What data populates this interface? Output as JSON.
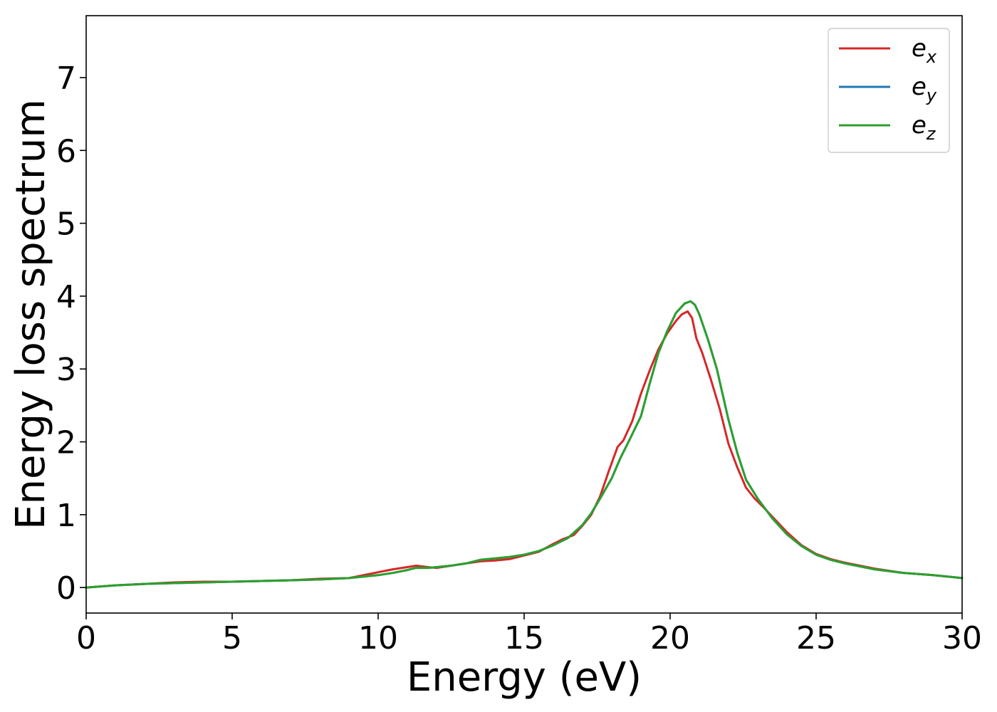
{
  "chart_data": {
    "type": "line",
    "xlabel": "Energy (eV)",
    "ylabel": "Energy loss spectrum",
    "xlim": [
      0,
      30
    ],
    "ylim": [
      -0.35,
      7.85
    ],
    "xticks": [
      0,
      5,
      10,
      15,
      20,
      25,
      30
    ],
    "yticks": [
      0,
      1,
      2,
      3,
      4,
      5,
      6,
      7
    ],
    "grid": false,
    "legend_position": "top-right",
    "series": [
      {
        "name": "e",
        "subscript": "x",
        "color": "#d62728",
        "x": [
          0,
          1,
          2,
          3,
          4,
          5,
          6,
          7,
          8,
          9,
          10,
          10.5,
          11,
          11.3,
          11.7,
          12,
          12.5,
          13,
          13.5,
          14,
          14.5,
          15,
          15.5,
          16,
          16.3,
          16.7,
          17,
          17.3,
          17.6,
          17.9,
          18.2,
          18.4,
          18.7,
          19,
          19.3,
          19.6,
          19.9,
          20.2,
          20.4,
          20.6,
          20.75,
          20.9,
          21.1,
          21.4,
          21.7,
          22,
          22.3,
          22.6,
          22.9,
          23.2,
          23.6,
          24,
          24.5,
          25,
          25.5,
          26,
          27,
          28,
          29,
          30
        ],
        "y": [
          0.0,
          0.03,
          0.05,
          0.07,
          0.08,
          0.08,
          0.09,
          0.1,
          0.12,
          0.13,
          0.21,
          0.25,
          0.28,
          0.3,
          0.28,
          0.27,
          0.3,
          0.33,
          0.36,
          0.37,
          0.39,
          0.44,
          0.49,
          0.6,
          0.66,
          0.72,
          0.85,
          1.0,
          1.25,
          1.6,
          1.93,
          2.02,
          2.28,
          2.66,
          2.98,
          3.27,
          3.49,
          3.66,
          3.75,
          3.79,
          3.7,
          3.42,
          3.22,
          2.85,
          2.45,
          1.97,
          1.65,
          1.37,
          1.22,
          1.1,
          0.93,
          0.76,
          0.58,
          0.46,
          0.39,
          0.34,
          0.26,
          0.2,
          0.17,
          0.13
        ]
      },
      {
        "name": "e",
        "subscript": "y",
        "color": "#1f77b4",
        "x": [
          0,
          1,
          2,
          3,
          4,
          5,
          6,
          7,
          8,
          9,
          10,
          10.5,
          11,
          11.3,
          11.7,
          12,
          12.5,
          13,
          13.5,
          14,
          14.5,
          15,
          15.5,
          16,
          16.5,
          17,
          17.3,
          17.6,
          18,
          18.3,
          18.6,
          19,
          19.3,
          19.6,
          19.9,
          20.2,
          20.5,
          20.7,
          20.85,
          21,
          21.3,
          21.6,
          22,
          22.3,
          22.6,
          23,
          23.5,
          24,
          24.5,
          25,
          25.5,
          26,
          27,
          28,
          29,
          30
        ],
        "y": [
          0.0,
          0.03,
          0.05,
          0.06,
          0.07,
          0.08,
          0.09,
          0.1,
          0.11,
          0.13,
          0.17,
          0.2,
          0.24,
          0.27,
          0.27,
          0.28,
          0.3,
          0.33,
          0.38,
          0.4,
          0.42,
          0.45,
          0.5,
          0.58,
          0.68,
          0.86,
          1.02,
          1.22,
          1.5,
          1.78,
          2.02,
          2.35,
          2.8,
          3.22,
          3.52,
          3.77,
          3.9,
          3.93,
          3.88,
          3.75,
          3.4,
          3.0,
          2.3,
          1.85,
          1.48,
          1.22,
          0.95,
          0.73,
          0.57,
          0.45,
          0.38,
          0.33,
          0.25,
          0.2,
          0.17,
          0.13
        ]
      },
      {
        "name": "e",
        "subscript": "z",
        "color": "#2ca02c",
        "x": [
          0,
          1,
          2,
          3,
          4,
          5,
          6,
          7,
          8,
          9,
          10,
          10.5,
          11,
          11.3,
          11.7,
          12,
          12.5,
          13,
          13.5,
          14,
          14.5,
          15,
          15.5,
          16,
          16.5,
          17,
          17.3,
          17.6,
          18,
          18.3,
          18.6,
          19,
          19.3,
          19.6,
          19.9,
          20.2,
          20.5,
          20.7,
          20.85,
          21,
          21.3,
          21.6,
          22,
          22.3,
          22.6,
          23,
          23.5,
          24,
          24.5,
          25,
          25.5,
          26,
          27,
          28,
          29,
          30
        ],
        "y": [
          0.0,
          0.03,
          0.05,
          0.06,
          0.07,
          0.08,
          0.09,
          0.1,
          0.11,
          0.13,
          0.17,
          0.2,
          0.24,
          0.27,
          0.27,
          0.28,
          0.3,
          0.33,
          0.38,
          0.4,
          0.42,
          0.45,
          0.5,
          0.58,
          0.68,
          0.86,
          1.02,
          1.22,
          1.5,
          1.78,
          2.02,
          2.35,
          2.8,
          3.22,
          3.52,
          3.77,
          3.9,
          3.93,
          3.88,
          3.75,
          3.4,
          3.0,
          2.3,
          1.85,
          1.48,
          1.22,
          0.95,
          0.73,
          0.57,
          0.45,
          0.38,
          0.33,
          0.25,
          0.2,
          0.17,
          0.13
        ]
      }
    ]
  }
}
